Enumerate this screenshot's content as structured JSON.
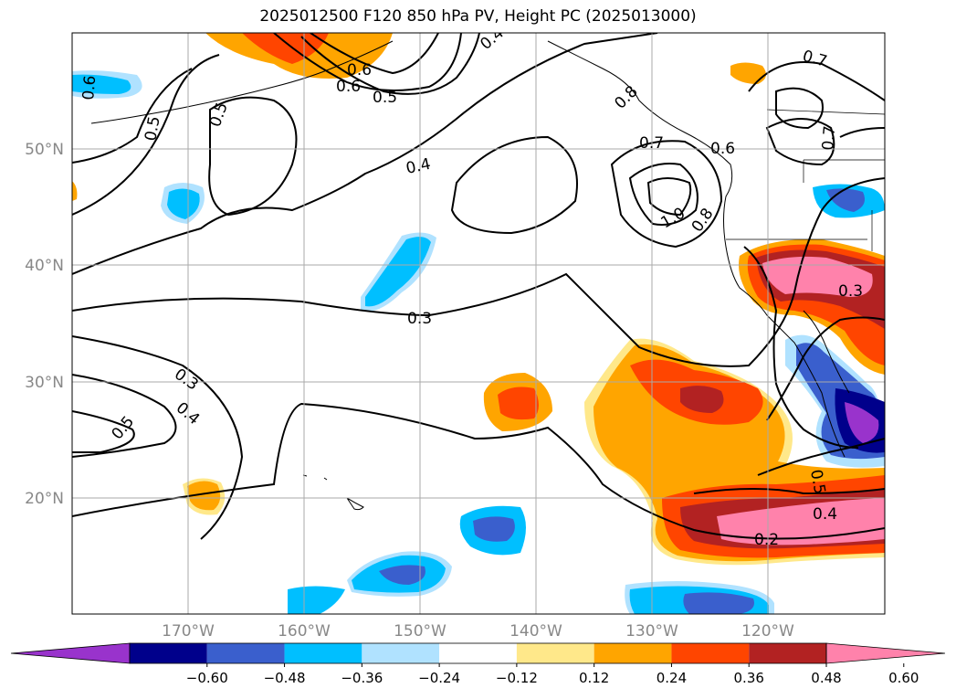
{
  "title": "2025012500 F120 850 hPa PV, Height PC (2025013000)",
  "lat_labels": [
    "50°N",
    "40°N",
    "30°N",
    "20°N"
  ],
  "lon_labels": [
    "170°W",
    "160°W",
    "150°W",
    "140°W",
    "130°W",
    "120°W"
  ],
  "colorbar": {
    "ticks": [
      "−0.60",
      "−0.48",
      "−0.36",
      "−0.24",
      "−0.12",
      "0.12",
      "0.24",
      "0.36",
      "0.48",
      "0.60"
    ],
    "colors": [
      "#9933cc",
      "#00008b",
      "#3a5fcd",
      "#00bfff",
      "#b0e2ff",
      "#ffffff",
      "#ffe88a",
      "#ffa500",
      "#ff4500",
      "#b22222",
      "#ff82ab"
    ]
  },
  "contour_labels": [
    {
      "id": "c1",
      "text": "0.4"
    },
    {
      "id": "c2",
      "text": "0.6"
    },
    {
      "id": "c3",
      "text": "0.5"
    },
    {
      "id": "c4",
      "text": "0.7"
    },
    {
      "id": "c5",
      "text": "0.4"
    },
    {
      "id": "c6",
      "text": "0.7"
    },
    {
      "id": "c7",
      "text": "0.6"
    },
    {
      "id": "c8",
      "text": "1.0"
    },
    {
      "id": "c9",
      "text": "0.8"
    },
    {
      "id": "c10",
      "text": "0.3"
    },
    {
      "id": "c11",
      "text": "0.3"
    },
    {
      "id": "c12",
      "text": "0.3"
    },
    {
      "id": "c13",
      "text": "0.4"
    },
    {
      "id": "c14",
      "text": "0.5"
    },
    {
      "id": "c15",
      "text": "0.5"
    },
    {
      "id": "c16",
      "text": "0.4"
    },
    {
      "id": "c17",
      "text": "0.2"
    },
    {
      "id": "c18",
      "text": "0.6"
    },
    {
      "id": "c19",
      "text": "0.5"
    },
    {
      "id": "c20",
      "text": "0.7"
    },
    {
      "id": "c21",
      "text": "0.5"
    },
    {
      "id": "c22",
      "text": "0.6"
    },
    {
      "id": "c23",
      "text": "0.8"
    }
  ]
}
